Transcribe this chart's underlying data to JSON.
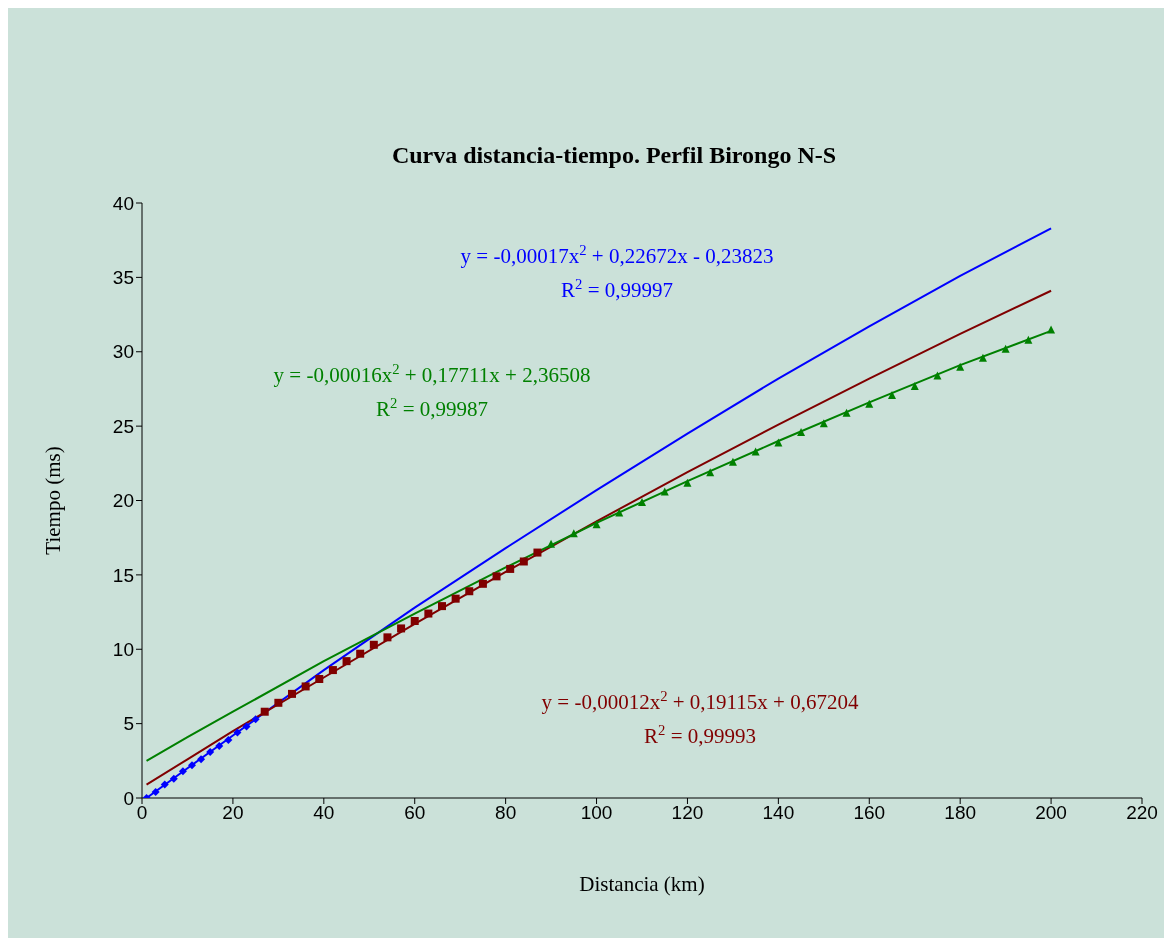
{
  "chart_data": {
    "type": "line",
    "title": "Curva distancia-tiempo. Perfil Birongo N-S",
    "xlabel": "Distancia (km)",
    "ylabel": "Tiempo (ms)",
    "xlim": [
      0,
      220
    ],
    "ylim": [
      0,
      40
    ],
    "xticks": [
      0,
      20,
      40,
      60,
      80,
      100,
      120,
      140,
      160,
      180,
      200,
      220
    ],
    "yticks": [
      0,
      5,
      10,
      15,
      20,
      25,
      30,
      35,
      40
    ],
    "grid": false,
    "legend": false,
    "series": [
      {
        "type": "scatter",
        "marker": "diamond",
        "color": "#0000ff",
        "x": [
          1,
          3,
          5,
          7,
          9,
          11,
          13,
          15,
          17,
          19,
          21,
          23,
          25
        ],
        "values": [
          0.0,
          0.4,
          0.9,
          1.3,
          1.8,
          2.2,
          2.6,
          3.1,
          3.5,
          3.9,
          4.4,
          4.8,
          5.3
        ]
      },
      {
        "type": "scatter",
        "marker": "square",
        "color": "#800000",
        "x": [
          27,
          30,
          33,
          36,
          39,
          42,
          45,
          48,
          51,
          54,
          57,
          60,
          63,
          66,
          69,
          72,
          75,
          78,
          81,
          84,
          87
        ],
        "values": [
          5.8,
          6.4,
          7.0,
          7.5,
          8.0,
          8.6,
          9.2,
          9.7,
          10.3,
          10.8,
          11.4,
          11.9,
          12.4,
          12.9,
          13.4,
          13.9,
          14.4,
          14.9,
          15.4,
          15.9,
          16.5
        ]
      },
      {
        "type": "scatter",
        "marker": "triangle",
        "color": "#008000",
        "x": [
          90,
          95,
          100,
          105,
          110,
          115,
          120,
          125,
          130,
          135,
          140,
          145,
          150,
          155,
          160,
          165,
          170,
          175,
          180,
          185,
          190,
          195,
          200
        ],
        "values": [
          17.1,
          17.8,
          18.4,
          19.2,
          19.9,
          20.6,
          21.2,
          21.9,
          22.6,
          23.3,
          23.9,
          24.6,
          25.2,
          25.9,
          26.5,
          27.1,
          27.7,
          28.4,
          29.0,
          29.6,
          30.2,
          30.8,
          31.5
        ]
      },
      {
        "marker": "none",
        "name": "y = -0,00017x$^{2}$ + 0,22672x - 0,23823\nR$^{2}$ = 0,99997",
        "color": "#0000ff",
        "x": [
          1,
          10,
          20,
          40,
          60,
          80,
          100,
          120,
          140,
          160,
          180,
          200
        ],
        "values": [
          0.0,
          2.0,
          4.2,
          8.6,
          12.8,
          16.8,
          20.7,
          24.5,
          28.2,
          31.7,
          35.1,
          38.3
        ]
      },
      {
        "marker": "none",
        "name": "y = -0,00012x$^{2}$ + 0,19115x + 0,67204\nR$^{2}$ = 0,99993",
        "color": "#800000",
        "x": [
          1,
          10,
          20,
          40,
          60,
          80,
          100,
          120,
          140,
          160,
          180,
          200
        ],
        "values": [
          0.9,
          2.6,
          4.5,
          8.1,
          11.7,
          15.2,
          18.6,
          21.9,
          25.1,
          28.2,
          31.2,
          34.1
        ]
      },
      {
        "marker": "none",
        "name": "y = -0,00016x$^{2}$ + 0,17711x + 2,36508\nR$^{2}$ = 0,99987",
        "color": "#008000",
        "x": [
          1,
          10,
          20,
          40,
          60,
          80,
          100,
          120,
          140,
          160,
          180,
          200
        ],
        "values": [
          2.5,
          4.1,
          5.8,
          9.2,
          12.4,
          15.5,
          18.5,
          21.3,
          24.0,
          26.6,
          29.1,
          31.4
        ]
      }
    ]
  }
}
